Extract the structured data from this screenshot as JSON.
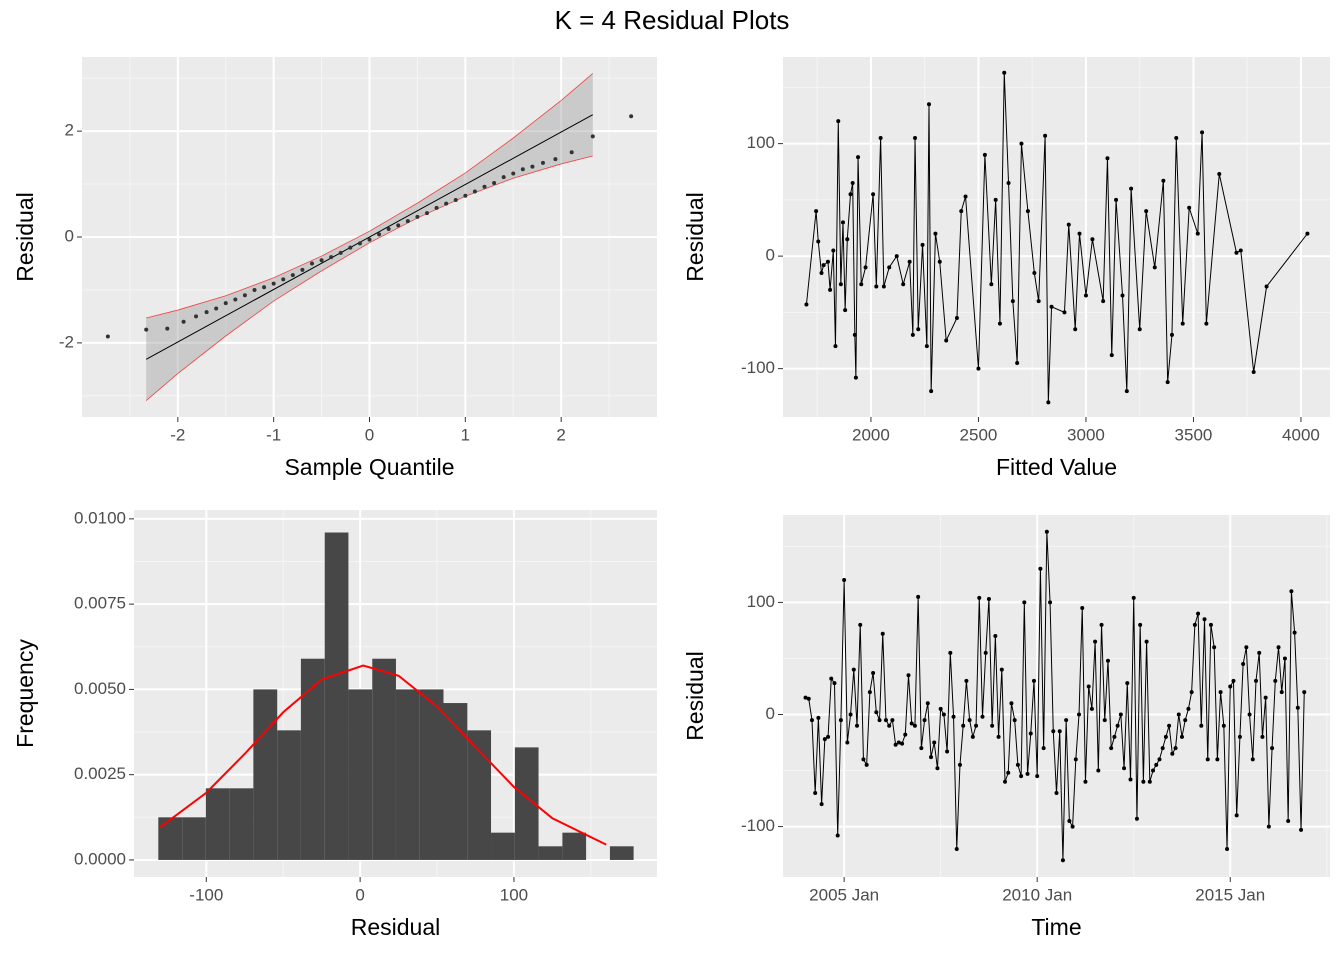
{
  "title": "K = 4 Residual Plots",
  "chart_data": [
    {
      "type": "qq",
      "x_label": "Sample Quantile",
      "y_label": "Residual",
      "color": "#333333",
      "x": [
        -2.73,
        -2.33,
        -2.11,
        -1.94,
        -1.81,
        -1.7,
        -1.6,
        -1.5,
        -1.4,
        -1.3,
        -1.2,
        -1.1,
        -1.0,
        -0.9,
        -0.8,
        -0.7,
        -0.6,
        -0.5,
        -0.4,
        -0.3,
        -0.2,
        -0.1,
        0,
        0.1,
        0.2,
        0.3,
        0.4,
        0.5,
        0.6,
        0.7,
        0.8,
        0.9,
        1.0,
        1.1,
        1.2,
        1.3,
        1.4,
        1.5,
        1.6,
        1.7,
        1.81,
        1.94,
        2.11,
        2.33,
        2.73
      ],
      "values": [
        -1.88,
        -1.75,
        -1.73,
        -1.6,
        -1.5,
        -1.42,
        -1.35,
        -1.25,
        -1.18,
        -1.1,
        -1.0,
        -0.95,
        -0.88,
        -0.8,
        -0.72,
        -0.62,
        -0.5,
        -0.44,
        -0.38,
        -0.3,
        -0.2,
        -0.12,
        -0.05,
        0.05,
        0.15,
        0.22,
        0.3,
        0.38,
        0.45,
        0.55,
        0.63,
        0.7,
        0.78,
        0.86,
        0.95,
        1.02,
        1.13,
        1.2,
        1.28,
        1.33,
        1.4,
        1.47,
        1.6,
        1.9,
        2.28
      ],
      "line": {
        "x": [
          -2.33,
          2.33
        ],
        "values": [
          -2.31,
          2.31
        ],
        "color": "#000000"
      },
      "band": {
        "x": [
          -2.33,
          -2,
          -1.5,
          -1,
          -0.5,
          0,
          0.5,
          1,
          1.5,
          2,
          2.33
        ],
        "lower": [
          -3.09,
          -2.58,
          -1.87,
          -1.21,
          -0.64,
          -0.11,
          0.36,
          0.77,
          1.11,
          1.38,
          1.53
        ],
        "upper": [
          -1.53,
          -1.38,
          -1.11,
          -0.77,
          -0.36,
          0.11,
          0.64,
          1.21,
          1.87,
          2.58,
          3.09
        ],
        "color": "#ff0000",
        "fill": "#999999"
      },
      "xlim": [
        -3,
        3
      ],
      "ylim": [
        -3.4,
        3.4
      ],
      "xticks": [
        -2,
        -1,
        0,
        1,
        2
      ],
      "yticks": [
        -2,
        0,
        2
      ],
      "grid": true
    },
    {
      "type": "line",
      "markers": true,
      "x_label": "Fitted Value",
      "y_label": "Residual",
      "color": "#000000",
      "x": [
        1700,
        1745,
        1755,
        1770,
        1780,
        1800,
        1810,
        1825,
        1835,
        1848,
        1860,
        1870,
        1880,
        1890,
        1905,
        1915,
        1925,
        1930,
        1940,
        1955,
        1975,
        2010,
        2025,
        2045,
        2060,
        2085,
        2120,
        2150,
        2180,
        2195,
        2205,
        2220,
        2240,
        2260,
        2270,
        2280,
        2300,
        2320,
        2350,
        2400,
        2420,
        2440,
        2500,
        2530,
        2560,
        2580,
        2600,
        2620,
        2640,
        2660,
        2680,
        2700,
        2730,
        2760,
        2780,
        2810,
        2825,
        2840,
        2900,
        2920,
        2950,
        2970,
        3000,
        3030,
        3080,
        3100,
        3120,
        3140,
        3170,
        3190,
        3210,
        3250,
        3280,
        3320,
        3360,
        3380,
        3400,
        3420,
        3450,
        3480,
        3520,
        3540,
        3560,
        3620,
        3700,
        3720,
        3780,
        3840,
        4030
      ],
      "values": [
        -43,
        40,
        13,
        -15,
        -8,
        -5,
        -30,
        5,
        -80,
        120,
        -25,
        30,
        -48,
        15,
        55,
        65,
        -70,
        -108,
        88,
        -25,
        -10,
        55,
        -27,
        105,
        -27,
        -10,
        0,
        -25,
        -5,
        -70,
        105,
        -65,
        10,
        -80,
        135,
        -120,
        20,
        -5,
        -75,
        -55,
        40,
        53,
        -100,
        90,
        -25,
        50,
        -60,
        163,
        65,
        -40,
        -95,
        100,
        40,
        -15,
        -40,
        107,
        -130,
        -45,
        -50,
        28,
        -65,
        20,
        -35,
        15,
        -40,
        87,
        -88,
        50,
        -35,
        -120,
        60,
        -65,
        40,
        -10,
        67,
        -112,
        -70,
        105,
        -60,
        43,
        20,
        110,
        -60,
        73,
        3,
        5,
        -103,
        -27,
        20
      ],
      "xlim": [
        1591,
        4135
      ],
      "ylim": [
        -143,
        177
      ],
      "xticks": [
        2000,
        2500,
        3000,
        3500,
        4000
      ],
      "yticks": [
        -100,
        0,
        100
      ],
      "grid": true
    },
    {
      "type": "histogram",
      "x_label": "Residual",
      "y_label": "Frequency",
      "color": "#474747",
      "bins": [
        -131.2,
        -115.7,
        -100.3,
        -84.8,
        -69.4,
        -53.9,
        -38.5,
        -23.0,
        -7.6,
        7.9,
        23.3,
        38.8,
        54.2,
        69.7,
        85.1,
        100.6,
        116.0,
        131.5,
        146.9,
        162.4,
        177.8
      ],
      "values": [
        0.00125,
        0.00125,
        0.0021,
        0.0021,
        0.005,
        0.0038,
        0.0059,
        0.0096,
        0.005,
        0.0059,
        0.005,
        0.005,
        0.0046,
        0.0038,
        0.0008,
        0.0033,
        0.0004,
        0.0008,
        0,
        0.0004
      ],
      "curve": {
        "x": [
          -130,
          -100,
          -75,
          -50,
          -25,
          2,
          25,
          50,
          75,
          100,
          125,
          160
        ],
        "values": [
          0.00096,
          0.00197,
          0.00311,
          0.00433,
          0.00529,
          0.0057,
          0.0054,
          0.0045,
          0.00331,
          0.00214,
          0.00122,
          0.00045
        ],
        "color": "#ff0000"
      },
      "xlim": [
        -147,
        193
      ],
      "ylim": [
        -0.0005,
        0.01026
      ],
      "xticks": [
        -100,
        0,
        100
      ],
      "yticks": [
        {
          "value": 0,
          "label": "0.0000"
        },
        {
          "value": 0.0025,
          "label": "0.0025"
        },
        {
          "value": 0.005,
          "label": "0.0050"
        },
        {
          "value": 0.0075,
          "label": "0.0075"
        },
        {
          "value": 0.01,
          "label": "0.0100"
        }
      ],
      "grid": true
    },
    {
      "type": "line",
      "markers": true,
      "x_label": "Time",
      "y_label": "Residual",
      "color": "#000000",
      "x": [
        "2004 Jan",
        "2004 Feb",
        "2004 Mar",
        "2004 Apr",
        "2004 May",
        "2004 Jun",
        "2004 Jul",
        "2004 Aug",
        "2004 Sep",
        "2004 Oct",
        "2004 Nov",
        "2004 Dec",
        "2005 Jan",
        "2005 Feb",
        "2005 Mar",
        "2005 Apr",
        "2005 May",
        "2005 Jun",
        "2005 Jul",
        "2005 Aug",
        "2005 Sep",
        "2005 Oct",
        "2005 Nov",
        "2005 Dec",
        "2006 Jan",
        "2006 Feb",
        "2006 Mar",
        "2006 Apr",
        "2006 May",
        "2006 Jun",
        "2006 Jul",
        "2006 Aug",
        "2006 Sep",
        "2006 Oct",
        "2006 Nov",
        "2006 Dec",
        "2007 Jan",
        "2007 Feb",
        "2007 Mar",
        "2007 Apr",
        "2007 May",
        "2007 Jun",
        "2007 Jul",
        "2007 Aug",
        "2007 Sep",
        "2007 Oct",
        "2007 Nov",
        "2007 Dec",
        "2008 Jan",
        "2008 Feb",
        "2008 Mar",
        "2008 Apr",
        "2008 May",
        "2008 Jun",
        "2008 Jul",
        "2008 Aug",
        "2008 Sep",
        "2008 Oct",
        "2008 Nov",
        "2008 Dec",
        "2009 Jan",
        "2009 Feb",
        "2009 Mar",
        "2009 Apr",
        "2009 May",
        "2009 Jun",
        "2009 Jul",
        "2009 Aug",
        "2009 Sep",
        "2009 Oct",
        "2009 Nov",
        "2009 Dec",
        "2010 Jan",
        "2010 Feb",
        "2010 Mar",
        "2010 Apr",
        "2010 May",
        "2010 Jun",
        "2010 Jul",
        "2010 Aug",
        "2010 Sep",
        "2010 Oct",
        "2010 Nov",
        "2010 Dec",
        "2011 Jan",
        "2011 Feb",
        "2011 Mar",
        "2011 Apr",
        "2011 May",
        "2011 Jun",
        "2011 Jul",
        "2011 Aug",
        "2011 Sep",
        "2011 Oct",
        "2011 Nov",
        "2011 Dec",
        "2012 Jan",
        "2012 Feb",
        "2012 Mar",
        "2012 Apr",
        "2012 May",
        "2012 Jun",
        "2012 Jul",
        "2012 Aug",
        "2012 Sep",
        "2012 Oct",
        "2012 Nov",
        "2012 Dec",
        "2013 Jan",
        "2013 Feb",
        "2013 Mar",
        "2013 Apr",
        "2013 May",
        "2013 Jun",
        "2013 Jul",
        "2013 Aug",
        "2013 Sep",
        "2013 Oct",
        "2013 Nov",
        "2013 Dec",
        "2014 Jan",
        "2014 Feb",
        "2014 Mar",
        "2014 Apr",
        "2014 May",
        "2014 Jun",
        "2014 Jul",
        "2014 Aug",
        "2014 Sep",
        "2014 Oct",
        "2014 Nov",
        "2014 Dec",
        "2015 Jan",
        "2015 Feb",
        "2015 Mar",
        "2015 Apr",
        "2015 May",
        "2015 Jun",
        "2015 Jul",
        "2015 Aug",
        "2015 Sep",
        "2015 Oct",
        "2015 Nov",
        "2015 Dec",
        "2016 Jan",
        "2016 Feb",
        "2016 Mar",
        "2016 Apr",
        "2016 May",
        "2016 Jun",
        "2016 Jul",
        "2016 Aug",
        "2016 Sep",
        "2016 Oct",
        "2016 Nov",
        "2016 Dec"
      ],
      "values": [
        15,
        14,
        -5,
        -70,
        -3,
        -80,
        -22,
        -20,
        32,
        28,
        -108,
        -5,
        120,
        -25,
        0,
        40,
        -10,
        80,
        -40,
        -45,
        20,
        37,
        2,
        -5,
        72,
        -5,
        -10,
        -5,
        -27,
        -25,
        -26,
        -18,
        35,
        -8,
        -10,
        105,
        -30,
        -5,
        10,
        -38,
        -25,
        -48,
        5,
        0,
        -33,
        55,
        -2,
        -120,
        -45,
        -10,
        30,
        -5,
        -20,
        -10,
        104,
        -2,
        55,
        103,
        -10,
        70,
        -20,
        40,
        -60,
        -52,
        10,
        -5,
        -45,
        -55,
        100,
        -53,
        -17,
        30,
        -55,
        130,
        -30,
        163,
        100,
        -15,
        -70,
        -15,
        -130,
        -5,
        -95,
        -100,
        -40,
        0,
        95,
        -60,
        25,
        5,
        65,
        -50,
        80,
        -5,
        48,
        -30,
        -20,
        -10,
        0,
        -48,
        28,
        -58,
        104,
        -93,
        80,
        -60,
        65,
        -60,
        -50,
        -45,
        -40,
        -30,
        -20,
        -10,
        -35,
        -30,
        0,
        -20,
        -5,
        5,
        20,
        80,
        90,
        -10,
        85,
        -40,
        80,
        60,
        -40,
        20,
        -10,
        -120,
        25,
        30,
        -90,
        -20,
        45,
        60,
        0,
        -40,
        30,
        55,
        -20,
        15,
        -100,
        -30,
        30,
        60,
        20,
        50,
        -95,
        110,
        73,
        6,
        -103,
        20
      ],
      "xlim": [
        "2003 Jun",
        "2017 Aug"
      ],
      "ylim": [
        -145,
        178
      ],
      "xticks": [
        "2005 Jan",
        "2010 Jan",
        "2015 Jan"
      ],
      "yticks": [
        -100,
        0,
        100
      ],
      "grid": true
    }
  ]
}
